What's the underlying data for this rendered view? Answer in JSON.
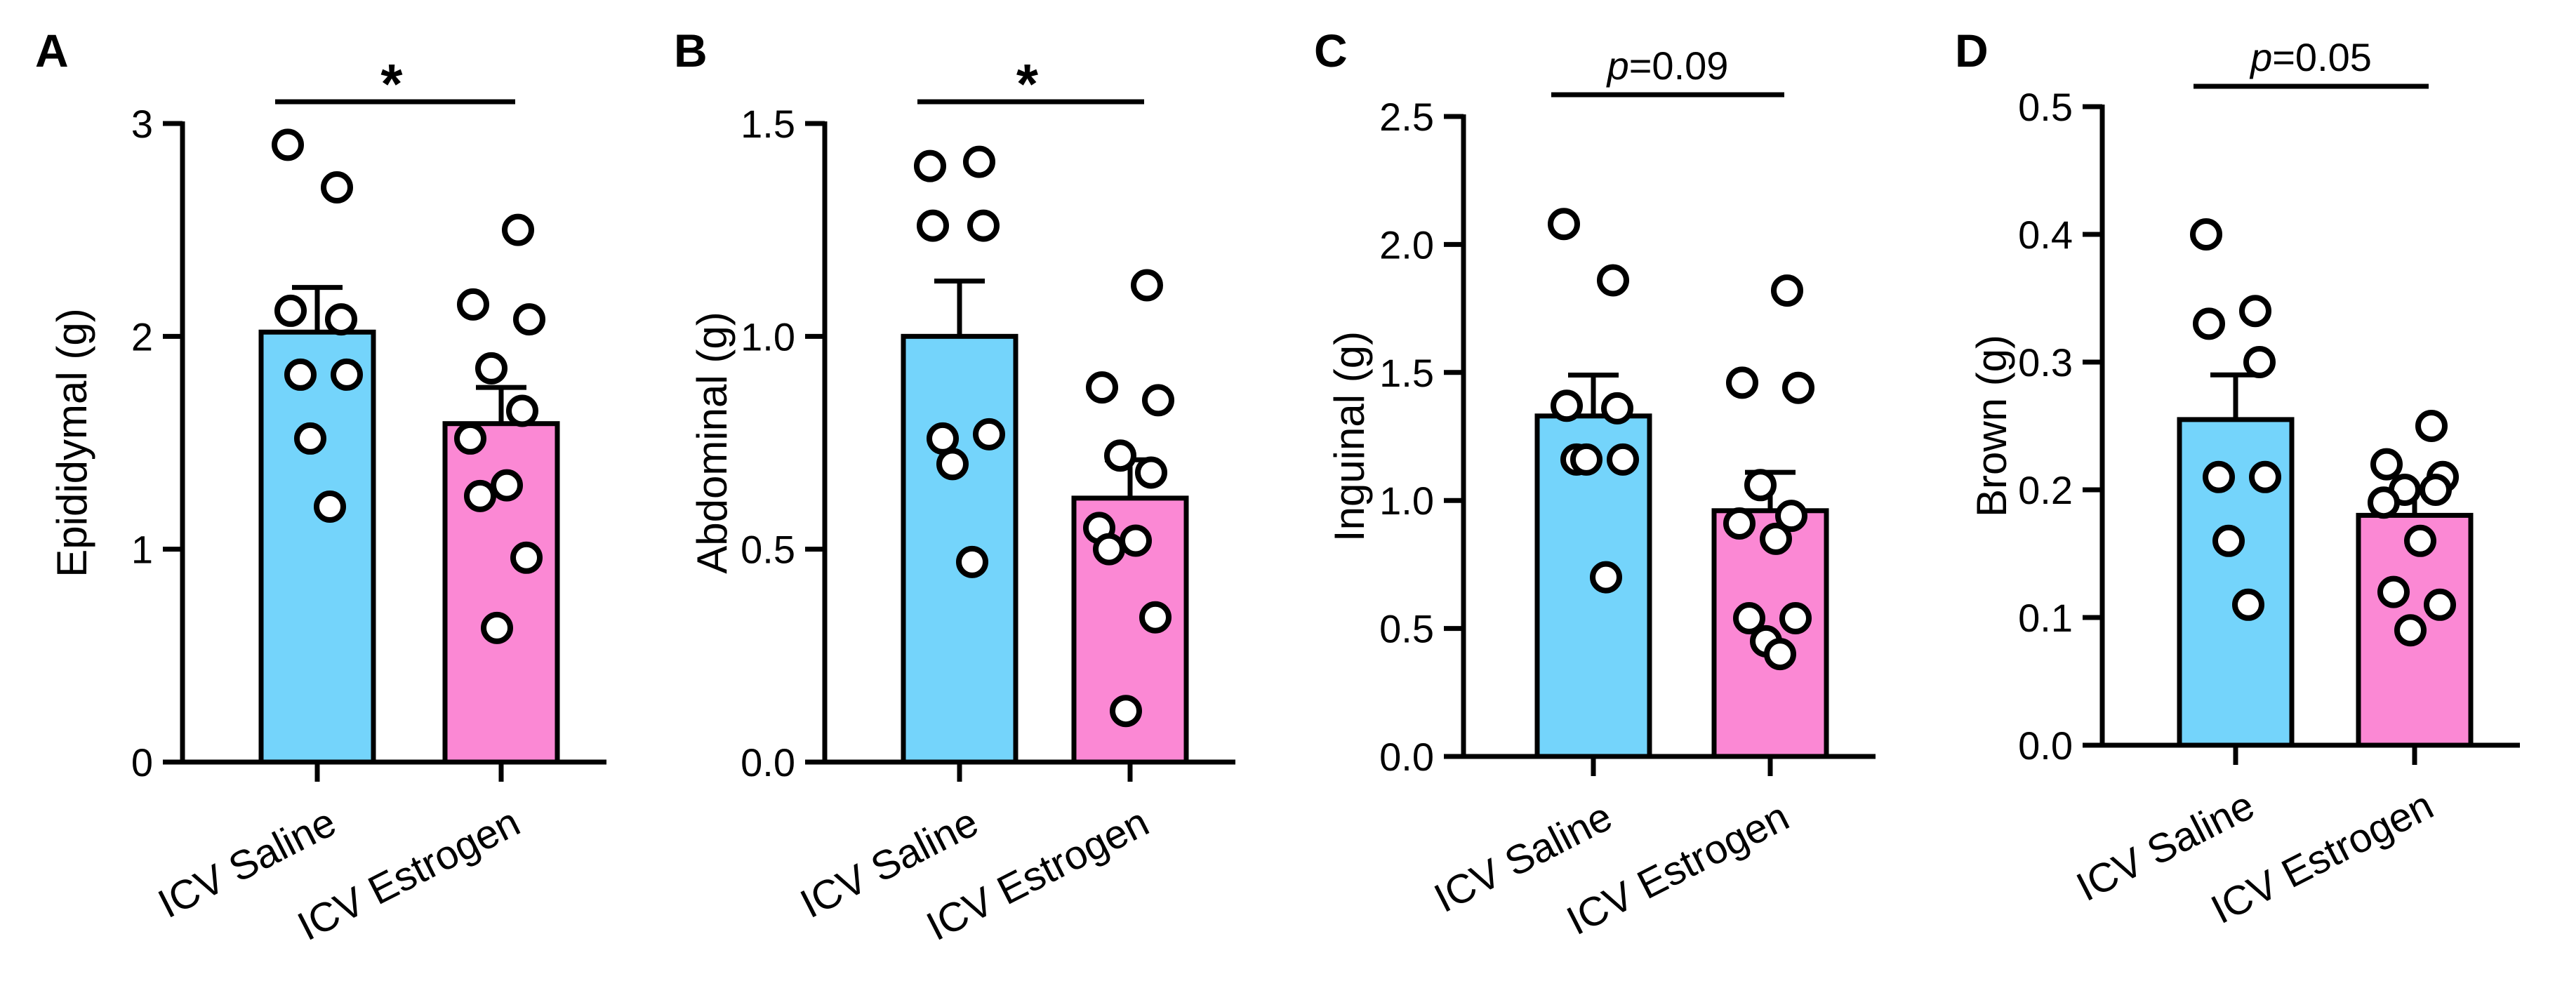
{
  "figure": {
    "colors": {
      "saline": "#74D4FB",
      "estrogen": "#FB88D4",
      "axis": "#000000",
      "point_fill": "#ffffff"
    }
  },
  "chart_data": [
    {
      "panel": "A",
      "type": "bar",
      "ylabel": "Epididymal (g)",
      "ylim": [
        0,
        3
      ],
      "yticks": [
        "0",
        "1",
        "2",
        "3"
      ],
      "categories": [
        "ICV Saline",
        "ICV Estrogen"
      ],
      "means": [
        2.02,
        1.59
      ],
      "sem": [
        0.21,
        0.17
      ],
      "points": [
        [
          2.9,
          2.7,
          2.12,
          2.08,
          1.82,
          1.82,
          1.52,
          1.2
        ],
        [
          2.5,
          2.15,
          2.08,
          1.85,
          1.65,
          1.52,
          1.3,
          1.25,
          0.96,
          0.63
        ]
      ],
      "significance": {
        "label": "*",
        "italic_p": false
      }
    },
    {
      "panel": "B",
      "type": "bar",
      "ylabel": "Abdominal (g)",
      "ylim": [
        0,
        1.5
      ],
      "yticks": [
        "0.0",
        "0.5",
        "1.0",
        "1.5"
      ],
      "categories": [
        "ICV Saline",
        "ICV Estrogen"
      ],
      "means": [
        1.0,
        0.62
      ],
      "sem": [
        0.13,
        0.09
      ],
      "points": [
        [
          1.4,
          1.41,
          1.26,
          1.26,
          0.76,
          0.77,
          0.7,
          0.47
        ],
        [
          1.12,
          0.88,
          0.85,
          0.72,
          0.68,
          0.55,
          0.52,
          0.5,
          0.34,
          0.12
        ]
      ],
      "significance": {
        "label": "*",
        "italic_p": false
      }
    },
    {
      "panel": "C",
      "type": "bar",
      "ylabel": "Inguinal (g)",
      "ylim": [
        0,
        2.5
      ],
      "yticks": [
        "0.0",
        "0.5",
        "1.0",
        "1.5",
        "2.0",
        "2.5"
      ],
      "categories": [
        "ICV Saline",
        "ICV Estrogen"
      ],
      "means": [
        1.33,
        0.96
      ],
      "sem": [
        0.16,
        0.15
      ],
      "points": [
        [
          2.08,
          1.86,
          1.37,
          1.36,
          1.16,
          1.16,
          1.16,
          0.7
        ],
        [
          1.82,
          1.46,
          1.44,
          1.06,
          0.94,
          0.91,
          0.85,
          0.54,
          0.54,
          0.45,
          0.4
        ]
      ],
      "significance": {
        "label": "p",
        "value_text": "=0.09",
        "italic_p": true
      }
    },
    {
      "panel": "D",
      "type": "bar",
      "ylabel": "Brown (g)",
      "ylim": [
        0,
        0.5
      ],
      "yticks": [
        "0.0",
        "0.1",
        "0.2",
        "0.3",
        "0.4",
        "0.5"
      ],
      "categories": [
        "ICV Saline",
        "ICV Estrogen"
      ],
      "means": [
        0.255,
        0.18
      ],
      "sem": [
        0.035,
        0.02
      ],
      "points": [
        [
          0.4,
          0.34,
          0.33,
          0.3,
          0.21,
          0.21,
          0.16,
          0.11
        ],
        [
          0.25,
          0.22,
          0.21,
          0.2,
          0.2,
          0.19,
          0.16,
          0.12,
          0.11,
          0.09
        ]
      ],
      "significance": {
        "label": "p",
        "value_text": "=0.05",
        "italic_p": true
      }
    }
  ]
}
